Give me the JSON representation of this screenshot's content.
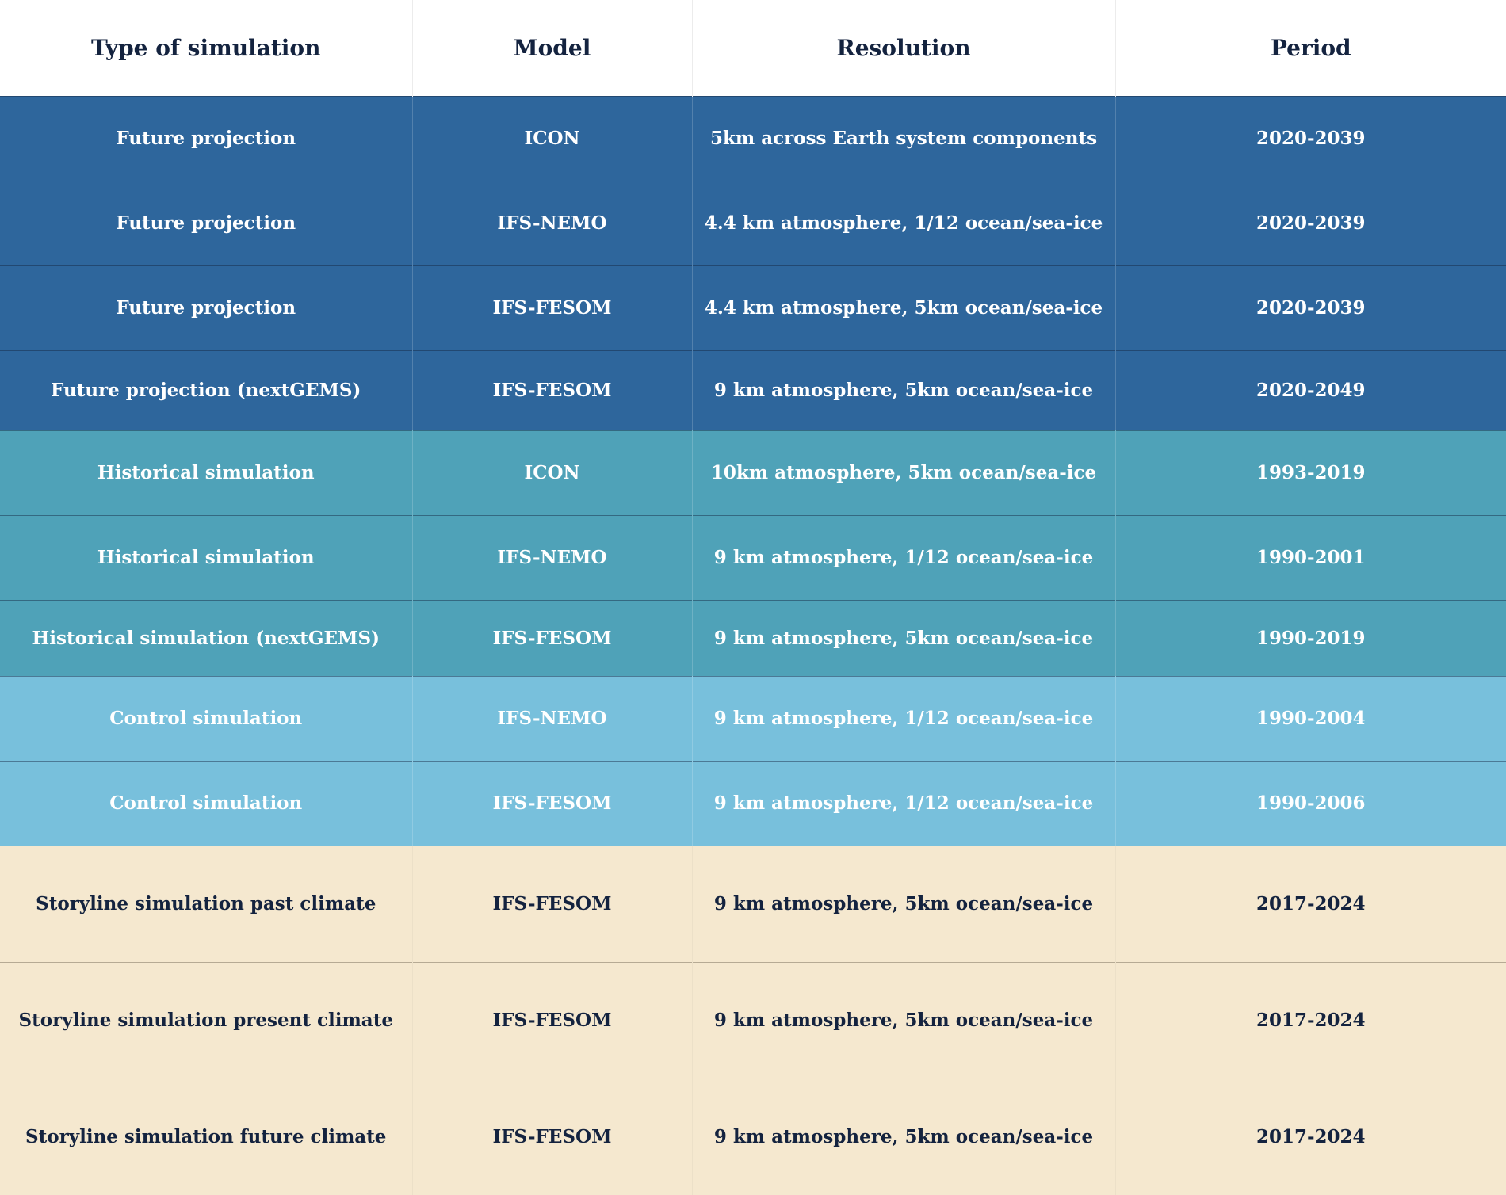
{
  "table": {
    "headers": {
      "type": "Type of simulation",
      "model": "Model",
      "resolution": "Resolution",
      "period": "Period"
    },
    "colors": {
      "future_projection": "#2e669c",
      "historical_simulation": "#4fa2b8",
      "control_simulation": "#78c0dc",
      "storyline_simulation": "#f5e8cf",
      "dark_text": "#14233f"
    },
    "rows": [
      {
        "type": "Future projection",
        "model": "ICON",
        "resolution": "5km across Earth system components",
        "period": "2020-2039"
      },
      {
        "type": "Future projection",
        "model": "IFS-NEMO",
        "resolution": "4.4 km atmosphere, 1/12 ocean/sea-ice",
        "period": "2020-2039"
      },
      {
        "type": "Future projection",
        "model": "IFS-FESOM",
        "resolution": "4.4 km atmosphere, 5km ocean/sea-ice",
        "period": "2020-2039"
      },
      {
        "type": "Future projection (nextGEMS)",
        "model": "IFS-FESOM",
        "resolution": "9 km atmosphere, 5km ocean/sea-ice",
        "period": "2020-2049"
      },
      {
        "type": "Historical simulation",
        "model": "ICON",
        "resolution": "10km atmosphere, 5km ocean/sea-ice",
        "period": "1993-2019"
      },
      {
        "type": "Historical simulation",
        "model": "IFS-NEMO",
        "resolution": "9 km atmosphere, 1/12 ocean/sea-ice",
        "period": "1990-2001"
      },
      {
        "type": "Historical simulation (nextGEMS)",
        "model": "IFS-FESOM",
        "resolution": "9 km atmosphere, 5km ocean/sea-ice",
        "period": "1990-2019"
      },
      {
        "type": "Control simulation",
        "model": "IFS-NEMO",
        "resolution": "9 km atmosphere, 1/12 ocean/sea-ice",
        "period": "1990-2004"
      },
      {
        "type": "Control simulation",
        "model": "IFS-FESOM",
        "resolution": "9 km atmosphere, 1/12 ocean/sea-ice",
        "period": "1990-2006"
      },
      {
        "type": "Storyline simulation past climate",
        "model": "IFS-FESOM",
        "resolution": "9 km atmosphere, 5km ocean/sea-ice",
        "period": "2017-2024"
      },
      {
        "type": "Storyline simulation present climate",
        "model": "IFS-FESOM",
        "resolution": "9 km atmosphere, 5km ocean/sea-ice",
        "period": "2017-2024"
      },
      {
        "type": "Storyline simulation future climate",
        "model": "IFS-FESOM",
        "resolution": "9 km atmosphere, 5km ocean/sea-ice",
        "period": "2017-2024"
      }
    ]
  }
}
